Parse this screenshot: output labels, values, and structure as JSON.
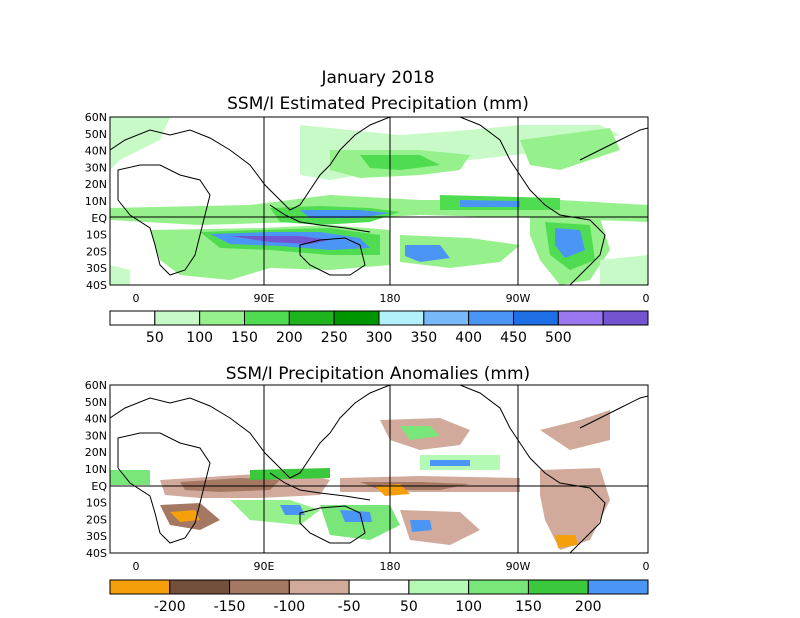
{
  "figure": {
    "title_line1": "January 2018",
    "panel1_title": "SSM/I Estimated Precipitation (mm)",
    "panel2_title": "SSM/I Precipitation Anomalies (mm)"
  },
  "axes": {
    "lat_labels": [
      "60N",
      "50N",
      "40N",
      "30N",
      "20N",
      "10N",
      "EQ",
      "10S",
      "20S",
      "30S",
      "40S"
    ],
    "lon_labels": [
      "0",
      "90E",
      "180",
      "90W",
      "0"
    ]
  },
  "colorbar1": {
    "colors": [
      "#ffffff",
      "#c8fac8",
      "#96f08c",
      "#50dc50",
      "#1eb41e",
      "#009600",
      "#b4f0fa",
      "#78b9fa",
      "#4b96f5",
      "#1e6ee6",
      "#9b78f0",
      "#7355d2"
    ],
    "labels": [
      "50",
      "100",
      "150",
      "200",
      "250",
      "300",
      "350",
      "400",
      "450",
      "500"
    ]
  },
  "colorbar2": {
    "colors": [
      "#f5a00a",
      "#73503c",
      "#a57864",
      "#d2aa9b",
      "#ffffff",
      "#b4fab4",
      "#78e678",
      "#3cc83c",
      "#4b96f5"
    ],
    "labels": [
      "-200",
      "-150",
      "-100",
      "-50",
      "50",
      "100",
      "150",
      "200"
    ]
  },
  "map_colors": {
    "land_outline": "#000000",
    "grid": "#000000"
  }
}
